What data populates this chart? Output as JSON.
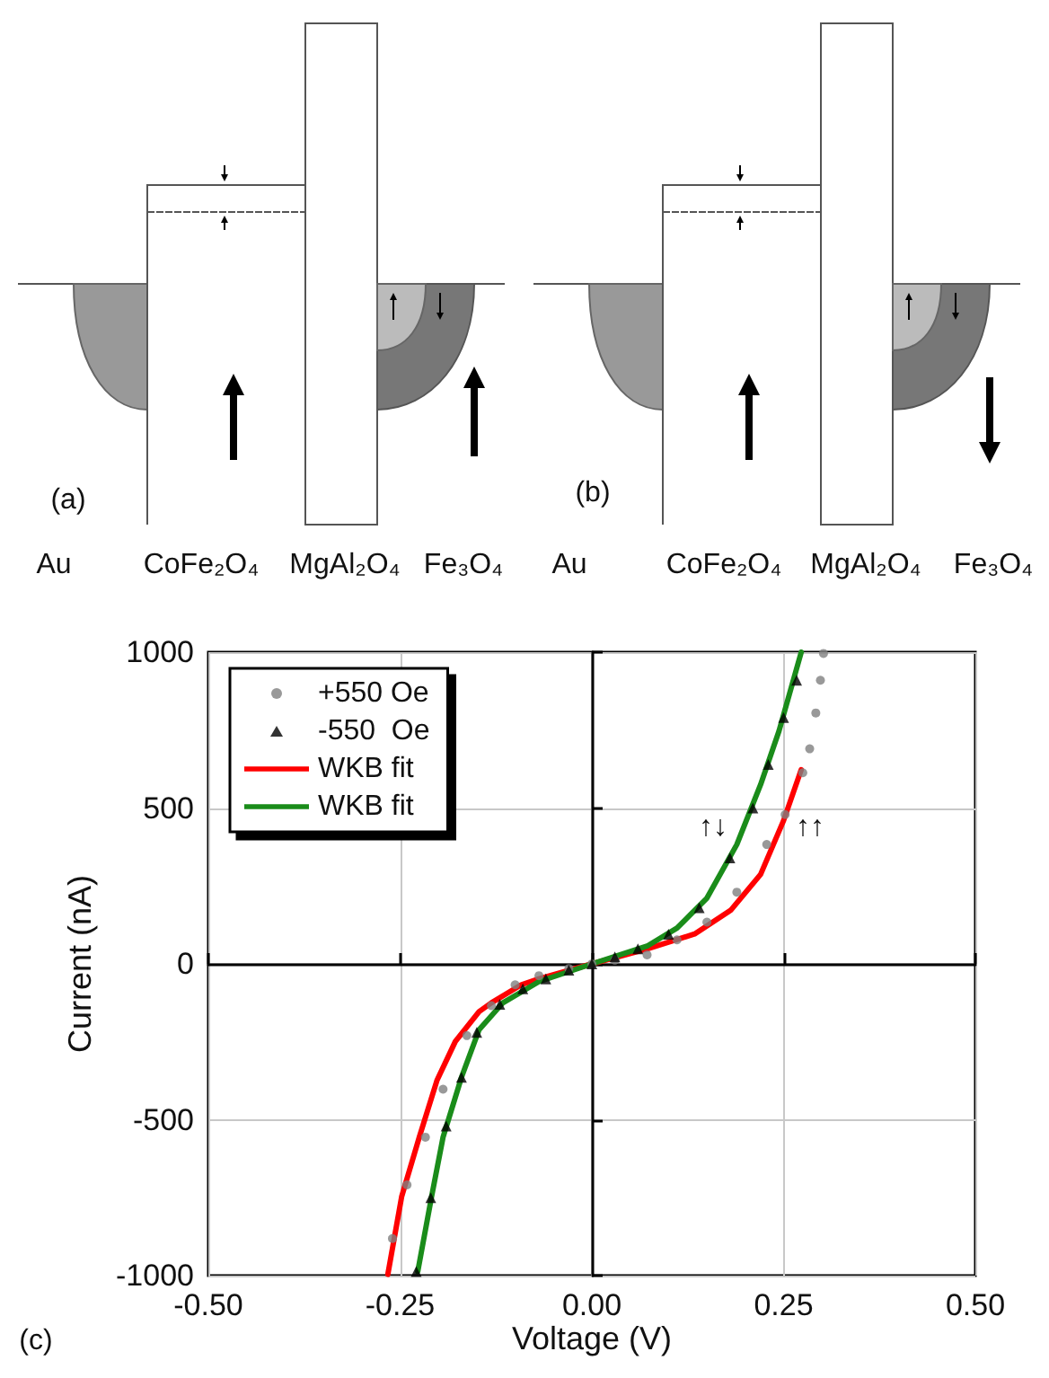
{
  "chart_data": {
    "type": "scatter",
    "xlabel": "Voltage (V)",
    "ylabel": "Current (nA)",
    "xlim": [
      -0.5,
      0.5
    ],
    "xticks": [
      {
        "value": -0.5,
        "label": "-0.50"
      },
      {
        "value": -0.25,
        "label": "-0.25"
      },
      {
        "value": 0,
        "label": "0.00"
      },
      {
        "value": 0.25,
        "label": "0.25"
      },
      {
        "value": 0.5,
        "label": "0.50"
      }
    ],
    "ylim": [
      -1000,
      1000
    ],
    "yticks": [
      -1000,
      -500,
      0,
      500,
      1000
    ],
    "grid": true,
    "legend": "top left",
    "annotations": [
      "(a)",
      "Au",
      "CoFe₂O₄",
      "MgAl₂O₄",
      "Fe₃O₄",
      "(b)",
      "Au",
      "CoFe₂O₄",
      "MgAl₂O₄",
      "Fe₃O₄",
      "(c)",
      "↑↓",
      "↑↑"
    ],
    "series": [
      {
        "name": "+550 Oe",
        "marker": "circle",
        "color": "#808080",
        "x": [
          -0.26,
          -0.241,
          -0.217,
          -0.194,
          -0.163,
          -0.131,
          -0.1,
          -0.069,
          -0.03,
          0,
          0.03,
          0.072,
          0.111,
          0.15,
          0.189,
          0.228,
          0.252,
          0.275,
          0.284,
          0.292,
          0.298,
          0.302
        ],
        "values": [
          -881,
          -709,
          -556,
          -402,
          -230,
          -134,
          -67,
          -38,
          -15,
          0,
          12,
          29,
          77,
          134,
          230,
          383,
          479,
          613,
          690,
          805,
          910,
          996
        ]
      },
      {
        "name": "-550  Oe",
        "marker": "triangle",
        "color": "#000000",
        "x": [
          -0.229,
          -0.21,
          -0.19,
          -0.17,
          -0.15,
          -0.12,
          -0.09,
          -0.06,
          -0.03,
          0,
          0.03,
          0.06,
          0.1,
          0.14,
          0.18,
          0.21,
          0.23,
          0.25,
          0.267
        ],
        "values": [
          -987,
          -750,
          -520,
          -364,
          -220,
          -130,
          -80,
          -48,
          -20,
          0,
          22,
          48,
          95,
          180,
          340,
          500,
          640,
          790,
          910
        ]
      },
      {
        "name": "WKB fit",
        "type": "line",
        "marker": "none",
        "line_style": "solid",
        "color": "#ff0000",
        "x": [
          -0.266,
          -0.248,
          -0.225,
          -0.202,
          -0.178,
          -0.147,
          -0.131,
          -0.092,
          -0.069,
          0,
          0.072,
          0.134,
          0.181,
          0.22,
          0.25,
          0.273
        ],
        "values": [
          -996,
          -747,
          -556,
          -374,
          -249,
          -153,
          -125,
          -67,
          -48,
          0,
          48,
          96,
          172,
          287,
          460,
          623
        ]
      },
      {
        "name": "WKB fit",
        "type": "line",
        "marker": "none",
        "line_style": "solid",
        "color": "#1a8c1a",
        "x": [
          -0.227,
          -0.209,
          -0.194,
          -0.17,
          -0.147,
          -0.116,
          -0.069,
          0,
          0.072,
          0.111,
          0.15,
          0.189,
          0.22,
          0.244,
          0.273
        ],
        "values": [
          -987,
          -747,
          -556,
          -364,
          -211,
          -125,
          -57,
          0,
          57,
          115,
          211,
          383,
          575,
          747,
          1000
        ]
      }
    ]
  }
}
